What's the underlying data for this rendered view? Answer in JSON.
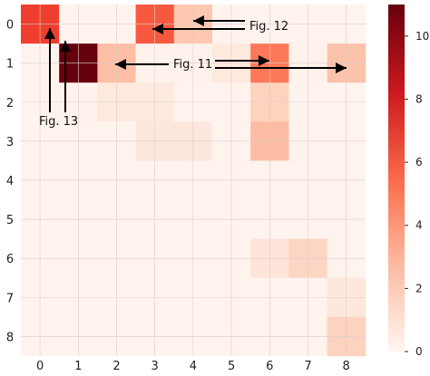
{
  "chart_data": {
    "type": "heatmap",
    "x_labels": [
      "0",
      "1",
      "2",
      "3",
      "4",
      "5",
      "6",
      "7",
      "8"
    ],
    "y_labels": [
      "0",
      "1",
      "2",
      "3",
      "4",
      "5",
      "6",
      "7",
      "8"
    ],
    "values": [
      [
        6.8,
        0.1,
        0.1,
        6.0,
        2.3,
        0.1,
        0.1,
        0.1,
        0.1
      ],
      [
        0.1,
        11.0,
        2.6,
        0.2,
        0.2,
        0.8,
        5.0,
        0.2,
        2.5
      ],
      [
        0.1,
        0.2,
        0.8,
        0.8,
        0.1,
        0.1,
        1.9,
        0.1,
        0.1
      ],
      [
        0.1,
        0.1,
        0.1,
        0.9,
        0.9,
        0.1,
        2.7,
        0.1,
        0.1
      ],
      [
        0.1,
        0.1,
        0.1,
        0.1,
        0.1,
        0.1,
        0.1,
        0.1,
        0.1
      ],
      [
        0.1,
        0.1,
        0.1,
        0.1,
        0.1,
        0.1,
        0.1,
        0.1,
        0.1
      ],
      [
        0.1,
        0.1,
        0.1,
        0.1,
        0.1,
        0.1,
        1.1,
        1.8,
        0.1
      ],
      [
        0.1,
        0.1,
        0.1,
        0.1,
        0.1,
        0.1,
        0.1,
        0.1,
        0.9
      ],
      [
        0.1,
        0.1,
        0.1,
        0.1,
        0.1,
        0.1,
        0.1,
        0.1,
        1.9
      ]
    ],
    "colorscale": "Reds",
    "colorbar": {
      "range": [
        0,
        11
      ],
      "ticks": [
        "0",
        "2",
        "4",
        "6",
        "8",
        "10"
      ]
    },
    "grid": true,
    "annotations": [
      {
        "text": "Fig. 12",
        "targets": [
          [
            0,
            3
          ],
          [
            0,
            4
          ]
        ]
      },
      {
        "text": "Fig. 11",
        "targets": [
          [
            1,
            2
          ],
          [
            1,
            6
          ],
          [
            1,
            8
          ]
        ]
      },
      {
        "text": "Fig. 13",
        "targets": [
          [
            0,
            0
          ],
          [
            1,
            1
          ]
        ]
      }
    ]
  }
}
